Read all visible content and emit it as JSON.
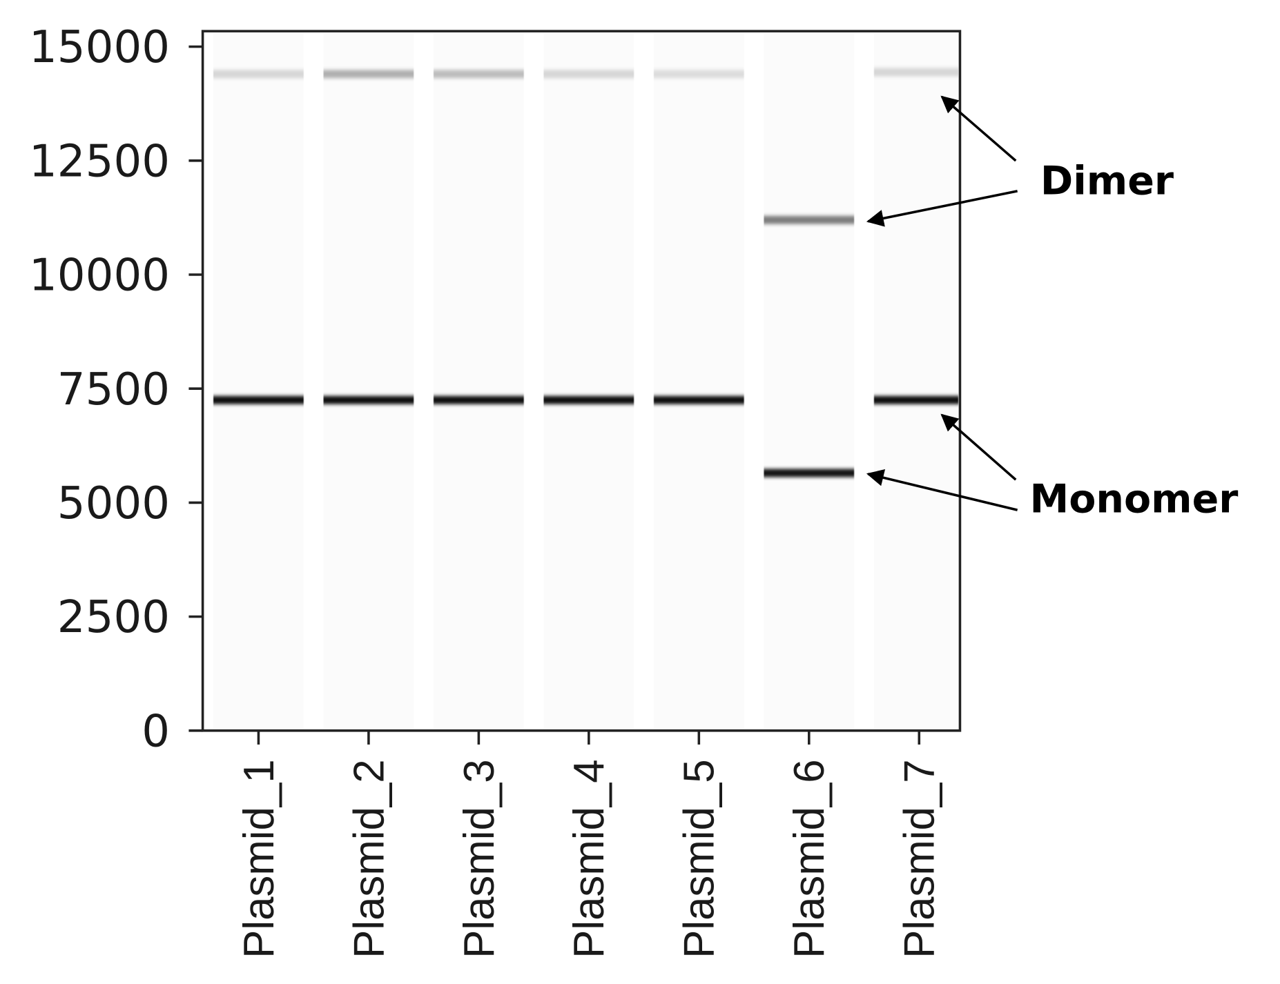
{
  "chart_data": {
    "type": "gel",
    "categories": [
      "Plasmid_1",
      "Plasmid_2",
      "Plasmid_3",
      "Plasmid_4",
      "Plasmid_5",
      "Plasmid_6",
      "Plasmid_7"
    ],
    "lanes": [
      {
        "bands": [
          {
            "size": 14400,
            "intensity": 0.15
          },
          {
            "size": 7250,
            "intensity": 0.95
          }
        ]
      },
      {
        "bands": [
          {
            "size": 14400,
            "intensity": 0.3
          },
          {
            "size": 7250,
            "intensity": 0.95
          }
        ]
      },
      {
        "bands": [
          {
            "size": 14400,
            "intensity": 0.25
          },
          {
            "size": 7250,
            "intensity": 0.95
          }
        ]
      },
      {
        "bands": [
          {
            "size": 14400,
            "intensity": 0.15
          },
          {
            "size": 7250,
            "intensity": 0.95
          }
        ]
      },
      {
        "bands": [
          {
            "size": 14400,
            "intensity": 0.12
          },
          {
            "size": 7250,
            "intensity": 0.95
          }
        ]
      },
      {
        "bands": [
          {
            "size": 11200,
            "intensity": 0.5
          },
          {
            "size": 5650,
            "intensity": 0.92
          }
        ]
      },
      {
        "bands": [
          {
            "size": 14440,
            "intensity": 0.15
          },
          {
            "size": 7250,
            "intensity": 0.95
          }
        ]
      }
    ],
    "ylim": [
      0,
      15340
    ],
    "yticks": [
      0,
      2500,
      5000,
      7500,
      10000,
      12500,
      15000
    ],
    "annotations": [
      "Dimer",
      "Monomer"
    ]
  }
}
